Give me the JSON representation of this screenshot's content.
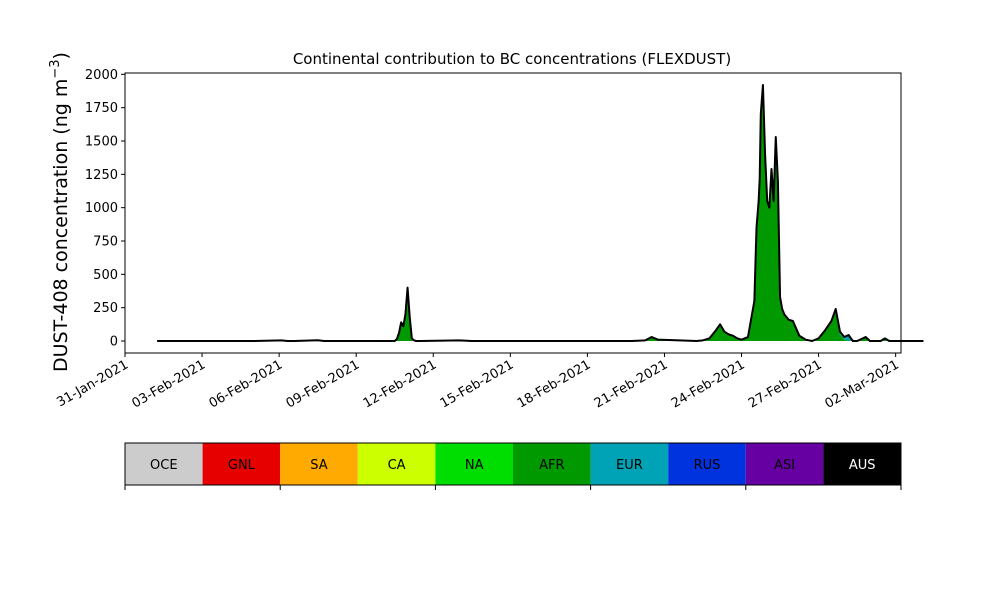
{
  "chart_data": {
    "type": "area",
    "title": "Continental contribution to BC concentrations (FLEXDUST)",
    "ylabel_main": "DUST-408 concentration (ng m",
    "ylabel_sup": "−3",
    "ylabel_close": ")",
    "xlabel": "",
    "ylim": [
      -90,
      2010
    ],
    "xlim": [
      "2021-01-31T00:00",
      "2021-03-02T05:00"
    ],
    "yticks": [
      0,
      250,
      500,
      750,
      1000,
      1250,
      1500,
      1750,
      2000
    ],
    "xticks": [
      {
        "date": "2021-01-31",
        "label": "31-Jan-2021"
      },
      {
        "date": "2021-02-03",
        "label": "03-Feb-2021"
      },
      {
        "date": "2021-02-06",
        "label": "06-Feb-2021"
      },
      {
        "date": "2021-02-09",
        "label": "09-Feb-2021"
      },
      {
        "date": "2021-02-12",
        "label": "12-Feb-2021"
      },
      {
        "date": "2021-02-15",
        "label": "15-Feb-2021"
      },
      {
        "date": "2021-02-18",
        "label": "18-Feb-2021"
      },
      {
        "date": "2021-02-21",
        "label": "21-Feb-2021"
      },
      {
        "date": "2021-02-24",
        "label": "24-Feb-2021"
      },
      {
        "date": "2021-02-27",
        "label": "27-Feb-2021"
      },
      {
        "date": "2021-03-02",
        "label": "02-Mar-2021"
      }
    ],
    "grid": false,
    "legend": "colorbar-below",
    "x": [
      "2021-02-01T06:00",
      "2021-02-05T00:00",
      "2021-02-06T02:00",
      "2021-02-06T08:00",
      "2021-02-06T14:00",
      "2021-02-07T12:00",
      "2021-02-07T18:00",
      "2021-02-08T00:00",
      "2021-02-10T12:00",
      "2021-02-10T14:00",
      "2021-02-10T16:00",
      "2021-02-10T18:00",
      "2021-02-10T20:00",
      "2021-02-10T22:00",
      "2021-02-11T00:00",
      "2021-02-11T02:00",
      "2021-02-11T04:00",
      "2021-02-11T06:00",
      "2021-02-11T08:00",
      "2021-02-11T10:00",
      "2021-02-11T12:00",
      "2021-02-13T00:00",
      "2021-02-13T12:00",
      "2021-02-14T00:00",
      "2021-02-18T06:00",
      "2021-02-18T12:00",
      "2021-02-18T18:00",
      "2021-02-19T18:00",
      "2021-02-20T06:00",
      "2021-02-20T12:00",
      "2021-02-20T18:00",
      "2021-02-22T06:00",
      "2021-02-22T12:00",
      "2021-02-22T18:00",
      "2021-02-23T00:00",
      "2021-02-23T04:00",
      "2021-02-23T08:00",
      "2021-02-23T12:00",
      "2021-02-23T16:00",
      "2021-02-23T20:00",
      "2021-02-24T00:00",
      "2021-02-24T06:00",
      "2021-02-24T12:00",
      "2021-02-24T14:00",
      "2021-02-24T16:00",
      "2021-02-24T17:00",
      "2021-02-24T18:00",
      "2021-02-24T20:00",
      "2021-02-24T22:00",
      "2021-02-25T00:00",
      "2021-02-25T02:00",
      "2021-02-25T04:00",
      "2021-02-25T06:00",
      "2021-02-25T08:00",
      "2021-02-25T10:00",
      "2021-02-25T12:00",
      "2021-02-25T14:00",
      "2021-02-25T16:00",
      "2021-02-25T18:00",
      "2021-02-25T20:00",
      "2021-02-26T00:00",
      "2021-02-26T06:00",
      "2021-02-26T12:00",
      "2021-02-26T18:00",
      "2021-02-27T00:00",
      "2021-02-27T06:00",
      "2021-02-27T12:00",
      "2021-02-27T16:00",
      "2021-02-27T20:00",
      "2021-02-28T00:00",
      "2021-02-28T04:00",
      "2021-02-28T08:00",
      "2021-02-28T12:00",
      "2021-02-28T16:00",
      "2021-02-28T20:00",
      "2021-03-01T00:00",
      "2021-03-01T06:00",
      "2021-03-01T10:00",
      "2021-03-01T14:00",
      "2021-03-01T18:00",
      "2021-03-01T22:00",
      "2021-03-02T02:00",
      "2021-03-03T02:00"
    ],
    "series": [
      {
        "name": "AFR",
        "values": [
          0,
          0,
          5,
          0,
          0,
          6,
          0,
          0,
          0,
          15,
          60,
          140,
          110,
          200,
          400,
          180,
          20,
          5,
          0,
          0,
          0,
          5,
          0,
          0,
          0,
          0,
          0,
          0,
          5,
          30,
          10,
          0,
          5,
          20,
          80,
          125,
          70,
          50,
          40,
          20,
          10,
          30,
          300,
          850,
          1050,
          1200,
          1650,
          1850,
          1400,
          1050,
          1000,
          1250,
          1050,
          1350,
          1150,
          330,
          240,
          200,
          180,
          160,
          150,
          40,
          10,
          0,
          20,
          80,
          150,
          220,
          50,
          10,
          5,
          0,
          0,
          15,
          30,
          0,
          0,
          0,
          10,
          0,
          0,
          0,
          0
        ]
      },
      {
        "name": "EUR",
        "values": [
          0,
          0,
          0,
          0,
          0,
          0,
          0,
          0,
          0,
          0,
          0,
          0,
          0,
          0,
          0,
          0,
          0,
          0,
          0,
          0,
          0,
          0,
          0,
          0,
          0,
          0,
          0,
          0,
          0,
          0,
          0,
          0,
          0,
          0,
          0,
          0,
          0,
          0,
          0,
          0,
          0,
          0,
          0,
          0,
          0,
          0,
          0,
          0,
          0,
          0,
          0,
          0,
          0,
          0,
          0,
          0,
          0,
          0,
          0,
          0,
          0,
          0,
          0,
          0,
          0,
          0,
          0,
          20,
          20,
          20,
          40,
          0,
          0,
          0,
          0,
          0,
          0,
          0,
          10,
          0,
          0,
          0,
          0
        ]
      },
      {
        "name": "RUS",
        "values": [
          0,
          0,
          0,
          0,
          0,
          0,
          0,
          0,
          0,
          0,
          0,
          0,
          0,
          0,
          0,
          0,
          0,
          0,
          0,
          0,
          0,
          0,
          0,
          0,
          0,
          0,
          0,
          0,
          0,
          0,
          0,
          0,
          0,
          0,
          0,
          0,
          0,
          0,
          0,
          0,
          0,
          0,
          0,
          0,
          0,
          20,
          30,
          50,
          0,
          0,
          0,
          40,
          0,
          150,
          50,
          0,
          0,
          0,
          0,
          0,
          0,
          0,
          0,
          0,
          0,
          0,
          0,
          0,
          0,
          0,
          0,
          0,
          0,
          0,
          0,
          0,
          0,
          0,
          0,
          0,
          0,
          0,
          0
        ]
      },
      {
        "name": "ASI",
        "values": [
          0,
          0,
          0,
          0,
          0,
          0,
          0,
          0,
          0,
          0,
          0,
          0,
          0,
          0,
          0,
          0,
          0,
          0,
          0,
          0,
          0,
          0,
          0,
          0,
          0,
          0,
          0,
          0,
          0,
          0,
          0,
          0,
          0,
          0,
          0,
          0,
          0,
          0,
          0,
          0,
          0,
          0,
          0,
          0,
          0,
          0,
          20,
          20,
          0,
          0,
          0,
          0,
          0,
          30,
          0,
          0,
          0,
          0,
          0,
          0,
          0,
          0,
          0,
          0,
          0,
          0,
          0,
          0,
          0,
          0,
          0,
          0,
          0,
          0,
          0,
          0,
          0,
          0,
          0,
          0,
          0,
          0,
          0
        ]
      }
    ],
    "colorbar": [
      {
        "label": "OCE",
        "color": "#cccccc",
        "text_color": "#000000"
      },
      {
        "label": "GNL",
        "color": "#e60000",
        "text_color": "#000000"
      },
      {
        "label": "SA",
        "color": "#ffaa00",
        "text_color": "#000000"
      },
      {
        "label": "CA",
        "color": "#ccff00",
        "text_color": "#000000"
      },
      {
        "label": "NA",
        "color": "#00dd00",
        "text_color": "#000000"
      },
      {
        "label": "AFR",
        "color": "#009900",
        "text_color": "#000000"
      },
      {
        "label": "EUR",
        "color": "#00a3b5",
        "text_color": "#000000"
      },
      {
        "label": "RUS",
        "color": "#0033dd",
        "text_color": "#000000"
      },
      {
        "label": "ASI",
        "color": "#6600a3",
        "text_color": "#000000"
      },
      {
        "label": "AUS",
        "color": "#000000",
        "text_color": "#ffffff"
      }
    ]
  }
}
